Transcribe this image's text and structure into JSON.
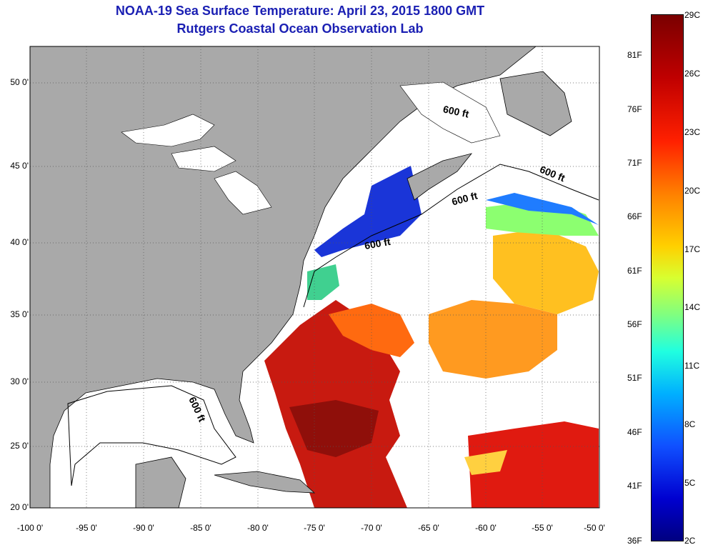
{
  "header": {
    "title": "NOAA-19 Sea Surface Temperature:  April 23, 2015 1800 GMT",
    "subtitle": "Rutgers Coastal Ocean Observation Lab"
  },
  "axes": {
    "lat_ticks": [
      "50 0'",
      "45 0'",
      "40 0'",
      "35 0'",
      "30 0'",
      "25 0'",
      "20 0'"
    ],
    "lon_ticks": [
      "-100 0'",
      "-95 0'",
      "-90 0'",
      "-85 0'",
      "-80 0'",
      "-75 0'",
      "-70 0'",
      "-65 0'",
      "-60 0'",
      "-55 0'",
      "-50 0'"
    ]
  },
  "colorbar": {
    "fahrenheit": [
      "81F",
      "76F",
      "71F",
      "66F",
      "61F",
      "56F",
      "51F",
      "46F",
      "41F",
      "36F"
    ],
    "celsius": [
      "29C",
      "26C",
      "23C",
      "20C",
      "17C",
      "14C",
      "11C",
      "8C",
      "5C",
      "2C"
    ]
  },
  "annotations": {
    "depth_1": "600 ft",
    "depth_2": "600 ft",
    "depth_3": "600 ft",
    "depth_4": "600 ft",
    "depth_5": "600 ft"
  },
  "colors": {
    "land": "#a9a9a9",
    "ocean": "#ffffff",
    "title": "#1a1fb3"
  }
}
